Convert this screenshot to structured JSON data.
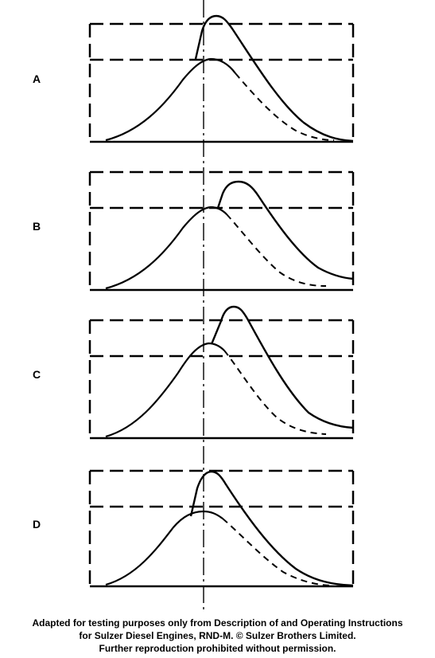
{
  "panels": [
    {
      "label": "A"
    },
    {
      "label": "B"
    },
    {
      "label": "C"
    },
    {
      "label": "D"
    }
  ],
  "caption": {
    "line1": "Adapted for testing purposes only from Description of and Operating Instructions",
    "line2": "for Sulzer Diesel Engines, RND-M.  © Sulzer Brothers Limited.",
    "line3": "Further reproduction prohibited without permission."
  }
}
